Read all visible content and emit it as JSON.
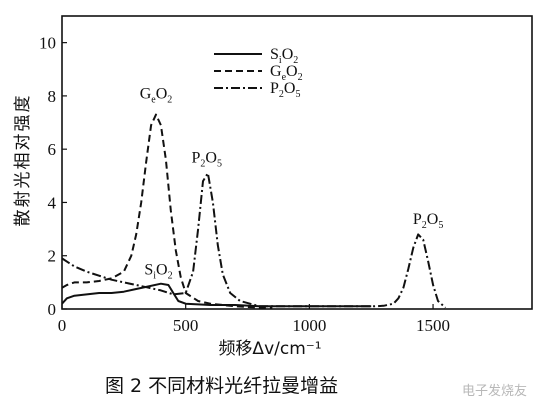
{
  "chart_data": {
    "type": "line",
    "title": "",
    "ylabel": "散射光相对强度",
    "xlabel": "频移Δv/cm⁻¹",
    "xlim": [
      0,
      1900
    ],
    "ylim": [
      0,
      11
    ],
    "xticks": [
      "0",
      "500",
      "1000",
      "1500"
    ],
    "yticks": [
      "0",
      "2",
      "4",
      "6",
      "8",
      "10"
    ],
    "legend": {
      "placement": "top-center",
      "entries": [
        {
          "base": "S",
          "sub1": "i",
          "mid": "O",
          "sub2": "2",
          "style": "solid"
        },
        {
          "base": "G",
          "sub1": "e",
          "mid": "O",
          "sub2": "2",
          "style": "dashed"
        },
        {
          "base": "P",
          "sub1": "2",
          "mid": "O",
          "sub2": "5",
          "style": "dashdot"
        }
      ]
    },
    "annotations": [
      {
        "base": "G",
        "sub1": "e",
        "mid": "O",
        "sub2": "2",
        "x": 380,
        "y": 7.9
      },
      {
        "base": "P",
        "sub1": "2",
        "mid": "O",
        "sub2": "5",
        "x": 585,
        "y": 5.5
      },
      {
        "base": "S",
        "sub1": "i",
        "mid": "O",
        "sub2": "2",
        "x": 390,
        "y": 1.3
      },
      {
        "base": "P",
        "sub1": "2",
        "mid": "O",
        "sub2": "5",
        "x": 1480,
        "y": 3.2
      }
    ],
    "series": [
      {
        "style": "solid",
        "x": [
          0,
          20,
          50,
          100,
          150,
          200,
          250,
          300,
          350,
          400,
          430,
          450,
          470,
          500,
          600,
          700,
          800,
          900,
          1000,
          1100,
          1200,
          1250
        ],
        "y": [
          0.2,
          0.4,
          0.5,
          0.55,
          0.6,
          0.6,
          0.65,
          0.75,
          0.85,
          0.95,
          0.9,
          0.6,
          0.3,
          0.2,
          0.15,
          0.15,
          0.1,
          0.1,
          0.1,
          0.1,
          0.1,
          0.1
        ]
      },
      {
        "style": "dashed",
        "x": [
          0,
          20,
          50,
          100,
          150,
          200,
          250,
          280,
          300,
          320,
          340,
          360,
          380,
          400,
          420,
          440,
          460,
          480,
          500,
          550,
          600,
          700,
          800,
          850
        ],
        "y": [
          0.8,
          0.9,
          1.0,
          1.0,
          1.05,
          1.15,
          1.4,
          2.0,
          2.8,
          4.0,
          5.5,
          6.9,
          7.3,
          6.9,
          5.6,
          3.7,
          2.2,
          1.2,
          0.6,
          0.3,
          0.2,
          0.1,
          0.05,
          0.05
        ]
      },
      {
        "style": "dashdot",
        "x": [
          0,
          50,
          100,
          150,
          200,
          250,
          300,
          350,
          400,
          450,
          500,
          530,
          550,
          570,
          590,
          610,
          630,
          650,
          680,
          720,
          760,
          800,
          900,
          1000,
          1100,
          1200,
          1260,
          1300,
          1340,
          1360,
          1380,
          1400,
          1420,
          1440,
          1460,
          1480,
          1500,
          1520,
          1550
        ],
        "y": [
          1.9,
          1.6,
          1.4,
          1.25,
          1.1,
          1.0,
          0.9,
          0.8,
          0.7,
          0.55,
          0.6,
          1.4,
          3.0,
          4.8,
          5.1,
          4.0,
          2.4,
          1.3,
          0.6,
          0.3,
          0.2,
          0.1,
          0.1,
          0.1,
          0.1,
          0.1,
          0.1,
          0.12,
          0.2,
          0.4,
          0.8,
          1.5,
          2.3,
          2.8,
          2.6,
          1.8,
          0.9,
          0.3,
          0.05
        ]
      }
    ]
  },
  "caption": "图 2   不同材料光纤拉曼增益",
  "watermark": "电子发烧友"
}
